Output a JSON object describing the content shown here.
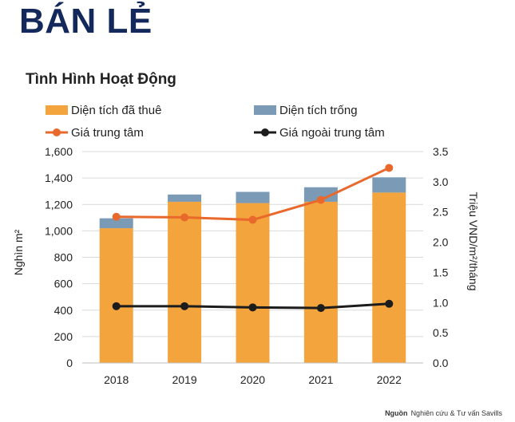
{
  "header": {
    "title": "BÁN LẺ"
  },
  "chart_title": "Tình Hình Hoạt Động",
  "source": {
    "label": "Nguồn",
    "text": "Nghiên cứu & Tư vấn Savills"
  },
  "colors": {
    "leased": "#f3a43c",
    "vacant": "#7b9ab6",
    "cbd": "#e8692b",
    "noncbd": "#1c1c1c",
    "title": "#14295b"
  },
  "chart_data": {
    "type": "bar",
    "categories": [
      "2018",
      "2019",
      "2020",
      "2021",
      "2022"
    ],
    "series": [
      {
        "name": "Diện tích đã thuê",
        "type": "bar",
        "stack": "area",
        "axis": "left",
        "values": [
          1020,
          1220,
          1210,
          1220,
          1290
        ]
      },
      {
        "name": "Diện tích trống",
        "type": "bar",
        "stack": "area",
        "axis": "left",
        "values": [
          75,
          55,
          85,
          110,
          115
        ]
      },
      {
        "name": "Giá trung tâm",
        "type": "line",
        "axis": "right",
        "values": [
          2.42,
          2.41,
          2.37,
          2.7,
          3.23
        ]
      },
      {
        "name": "Giá ngoài trung tâm",
        "type": "line",
        "axis": "right",
        "values": [
          0.94,
          0.94,
          0.92,
          0.91,
          0.98
        ]
      }
    ],
    "ylabel": "Nghìn m²",
    "y2label": "Triệu VND/m²/tháng",
    "ylim": [
      0,
      1600
    ],
    "y2lim": [
      0,
      3.5
    ],
    "yticks": [
      "0",
      "200",
      "400",
      "600",
      "800",
      "1,000",
      "1,200",
      "1,400",
      "1,600"
    ],
    "y2ticks": [
      "0.0",
      "0.5",
      "1.0",
      "1.5",
      "2.0",
      "2.5",
      "3.0",
      "3.5"
    ],
    "legend": "top",
    "grid": true
  }
}
